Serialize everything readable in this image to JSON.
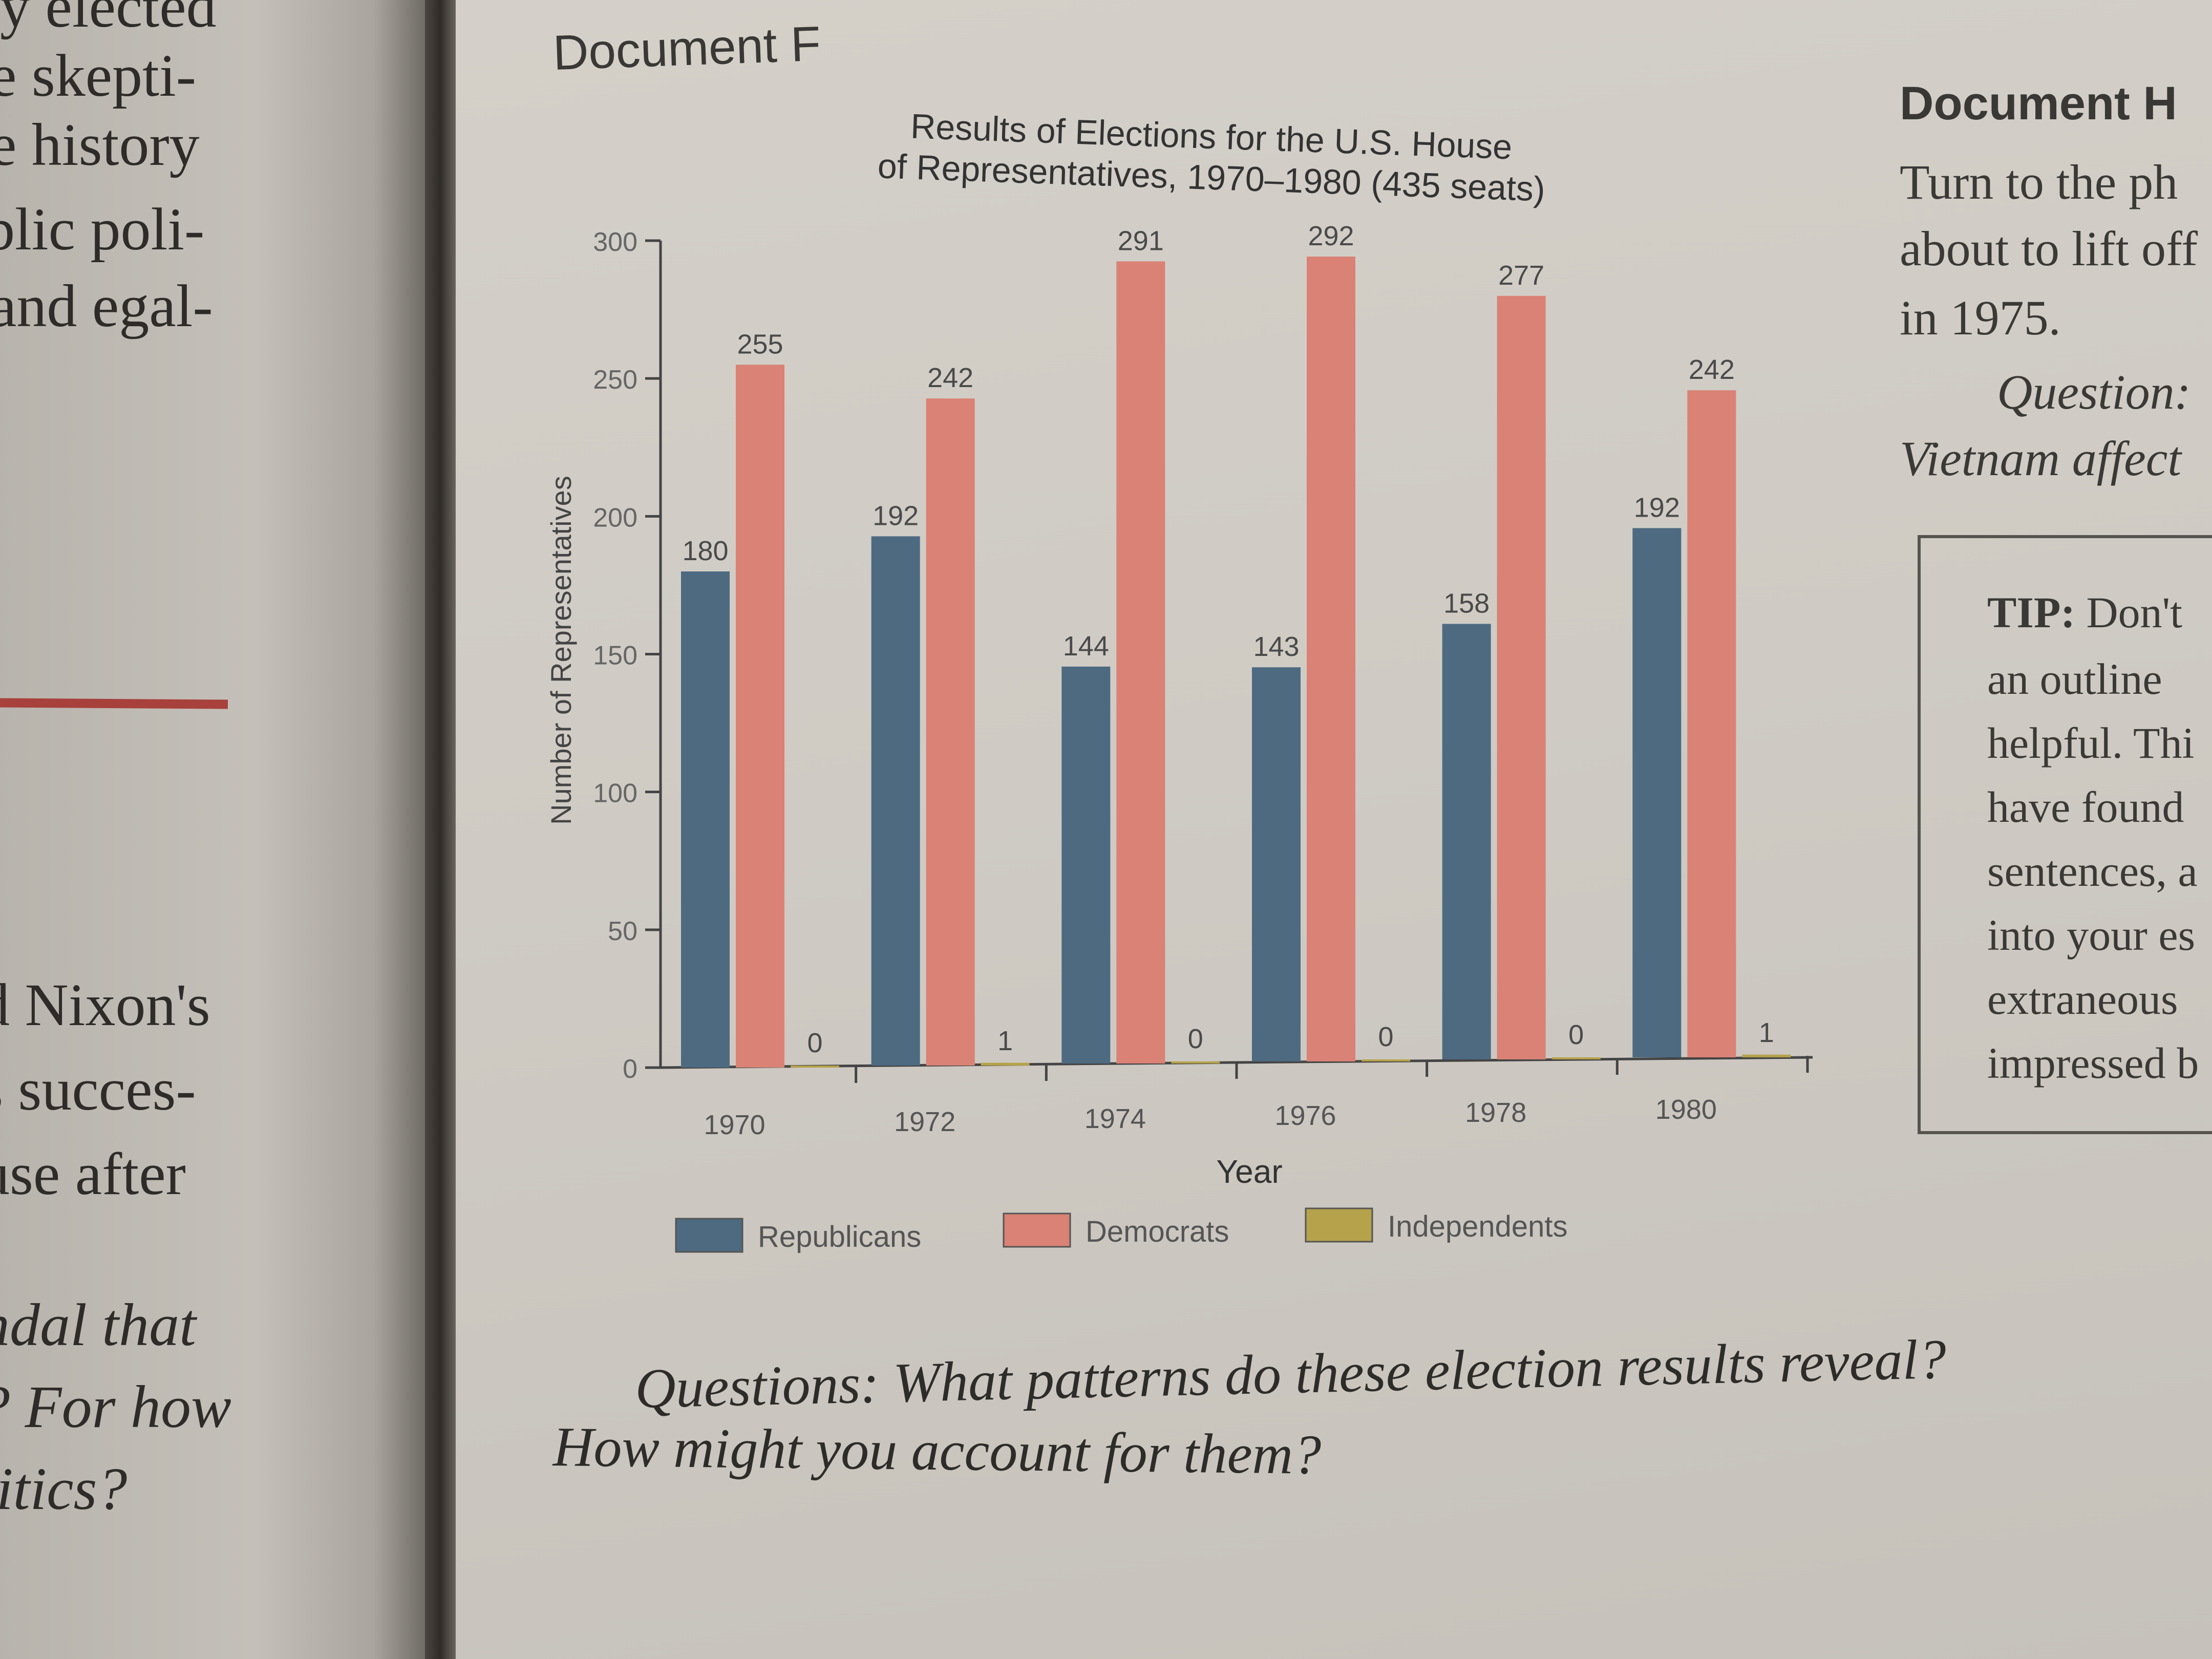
{
  "left_page": {
    "lines": [
      "y elected",
      "e skepti-",
      "e history",
      "blic poli-",
      "and egal-",
      "d Nixon's",
      "s succes-",
      "use after",
      "ndal that",
      "? For how",
      "litics?"
    ]
  },
  "document_f": {
    "label": "Document F"
  },
  "document_h": {
    "label": "Document H",
    "lines": [
      "Turn to the ph",
      "about to lift off",
      "in 1975."
    ],
    "question_lines": [
      "Question:",
      "Vietnam affect"
    ]
  },
  "tip": {
    "label": "TIP:",
    "first": "Don't",
    "lines": [
      "an outline",
      "helpful. Thi",
      "have found",
      "sentences, a",
      "into your es",
      "extraneous",
      "impressed b"
    ]
  },
  "questions": {
    "line1": "Questions: What patterns do these election results reveal?",
    "line2": "How might you account for them?"
  },
  "chart_data": {
    "type": "bar",
    "title_line1": "Results of Elections for the U.S. House",
    "title_line2": "of Representatives, 1970–1980 (435 seats)",
    "xlabel": "Year",
    "ylabel": "Number of Representatives",
    "ylim": [
      0,
      300
    ],
    "yticks": [
      "0",
      "50",
      "100",
      "150",
      "200",
      "250",
      "300"
    ],
    "categories": [
      "1970",
      "1972",
      "1974",
      "1976",
      "1978",
      "1980"
    ],
    "series": [
      {
        "name": "Republicans",
        "color": "#4d6a80",
        "values": [
          180,
          192,
          144,
          143,
          158,
          192
        ]
      },
      {
        "name": "Democrats",
        "color": "#d98275",
        "values": [
          255,
          242,
          291,
          292,
          277,
          242
        ]
      },
      {
        "name": "Independents",
        "color": "#b5a24a",
        "values": [
          0,
          1,
          0,
          0,
          0,
          1
        ]
      }
    ],
    "data_labels": [
      [
        "180",
        "192",
        "144",
        "143",
        "158",
        "192"
      ],
      [
        "255",
        "242",
        "291",
        "292",
        "277",
        "242"
      ],
      [
        "0",
        "1",
        "0",
        "0",
        "0",
        "1"
      ]
    ],
    "legend_position": "bottom",
    "grid": false
  }
}
